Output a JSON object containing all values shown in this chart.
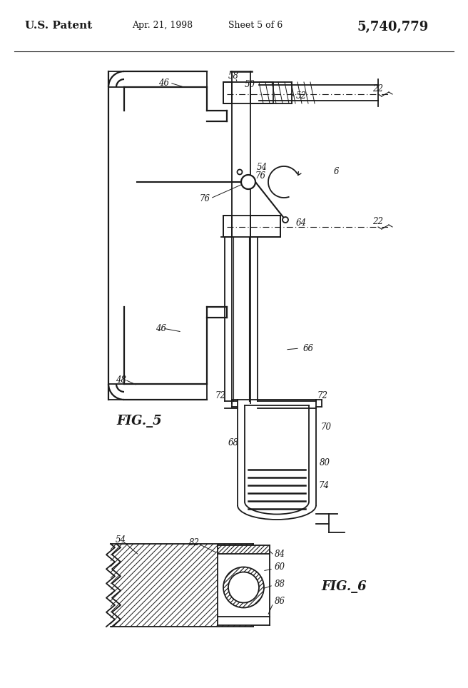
{
  "bg_color": "#ffffff",
  "line_color": "#1a1a1a",
  "header": {
    "patent_text": "U.S. Patent",
    "date_text": "Apr. 21, 1998",
    "sheet_text": "Sheet 5 of 6",
    "number_text": "5,740,779"
  },
  "fig5_label": "FIG._5",
  "fig6_label": "FIG._6"
}
